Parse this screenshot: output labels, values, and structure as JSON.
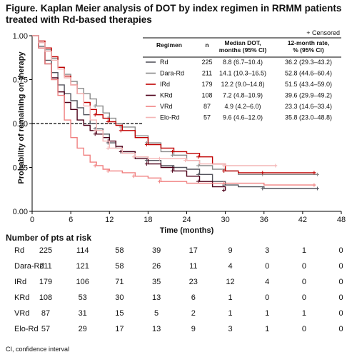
{
  "title": "Figure. Kaplan Meier analysis of DOT by index regimen in RRMM patients treated with Rd-based therapies",
  "chart_data": {
    "type": "line",
    "xlabel": "Time (months)",
    "ylabel": "Probability of remaining on therapy",
    "xlim": [
      0,
      48
    ],
    "ylim": [
      0,
      1.0
    ],
    "xticks": [
      "0",
      "6",
      "12",
      "18",
      "24",
      "30",
      "36",
      "42",
      "48"
    ],
    "yticks": [
      "0.00",
      "0.25",
      "0.50",
      "0.75",
      "1.00"
    ],
    "reference_line": {
      "y": 0.5,
      "style": "dashed"
    },
    "legend": {
      "censored_label": "+ Censored",
      "headers": [
        "Regimen",
        "n",
        "Median DOT, months (95% CI)",
        "12-month rate, % (95% CI)"
      ],
      "header_lines": [
        [
          "Regimen"
        ],
        [
          "n"
        ],
        [
          "Median DOT,",
          "months (95% CI)"
        ],
        [
          "12-month rate,",
          "% (95% CI)"
        ]
      ]
    },
    "series": [
      {
        "name": "Rd",
        "n": "225",
        "median": "8.8 (6.7–10.4)",
        "rate12": "36.2 (29.3–43.2)",
        "color": "#55555e",
        "x": [
          0,
          1,
          2,
          3,
          4,
          5,
          6,
          7,
          8,
          9,
          10,
          11,
          12,
          13,
          14,
          16,
          18,
          20,
          22,
          24,
          26,
          28,
          30,
          32,
          36,
          40,
          44.5
        ],
        "y": [
          1.0,
          0.94,
          0.86,
          0.79,
          0.72,
          0.67,
          0.63,
          0.59,
          0.55,
          0.5,
          0.47,
          0.44,
          0.39,
          0.36,
          0.34,
          0.31,
          0.29,
          0.26,
          0.25,
          0.24,
          0.21,
          0.17,
          0.15,
          0.14,
          0.13,
          0.13,
          0.13
        ]
      },
      {
        "name": "Dara-Rd",
        "n": "211",
        "median": "14.1 (10.3–16.5)",
        "rate12": "52.8 (44.6–60.4)",
        "color": "#8a8a8a",
        "x": [
          0,
          1,
          2,
          3,
          4,
          5,
          6,
          7,
          8,
          9,
          10,
          11,
          12,
          13,
          14,
          16,
          18,
          20,
          22,
          24,
          26,
          28,
          30,
          32,
          36,
          40,
          44.5
        ],
        "y": [
          1.0,
          0.96,
          0.92,
          0.87,
          0.82,
          0.78,
          0.74,
          0.7,
          0.67,
          0.64,
          0.6,
          0.56,
          0.53,
          0.5,
          0.48,
          0.43,
          0.39,
          0.34,
          0.32,
          0.29,
          0.26,
          0.24,
          0.23,
          0.21,
          0.21,
          0.21,
          0.21
        ]
      },
      {
        "name": "IRd",
        "n": "179",
        "median": "12.2 (9.0–14.8)",
        "rate12": "51.5 (43.4–59.0)",
        "color": "#c00000",
        "x": [
          0,
          1,
          2,
          3,
          4,
          5,
          6,
          7,
          8,
          9,
          10,
          11,
          12,
          13,
          14,
          16,
          18,
          20,
          22,
          24,
          26,
          28,
          30,
          32,
          36,
          40,
          44
        ],
        "y": [
          1.0,
          0.97,
          0.93,
          0.88,
          0.82,
          0.77,
          0.72,
          0.67,
          0.62,
          0.58,
          0.55,
          0.53,
          0.51,
          0.49,
          0.46,
          0.42,
          0.38,
          0.36,
          0.34,
          0.33,
          0.31,
          0.27,
          0.23,
          0.22,
          0.22,
          0.22,
          0.22
        ]
      },
      {
        "name": "KRd",
        "n": "108",
        "median": "7.2 (4.8–10.9)",
        "rate12": "39.6 (29.9–49.2)",
        "color": "#4d0019",
        "x": [
          0,
          1,
          2,
          3,
          4,
          5,
          6,
          7,
          8,
          9,
          10,
          11,
          12,
          13,
          14,
          16,
          18,
          20,
          22,
          24,
          26,
          28,
          30
        ],
        "y": [
          1.0,
          0.93,
          0.84,
          0.76,
          0.68,
          0.62,
          0.58,
          0.52,
          0.49,
          0.46,
          0.44,
          0.42,
          0.4,
          0.37,
          0.34,
          0.3,
          0.27,
          0.25,
          0.23,
          0.2,
          0.17,
          0.14,
          0.12
        ]
      },
      {
        "name": "VRd",
        "n": "87",
        "median": "4.9 (4.2–6.0)",
        "rate12": "23.3 (14.6–33.4)",
        "color": "#f08080",
        "x": [
          0,
          1,
          2,
          3,
          4,
          5,
          6,
          7,
          8,
          9,
          10,
          11,
          12,
          14,
          16,
          18,
          20,
          24,
          30,
          36,
          44
        ],
        "y": [
          1.0,
          0.93,
          0.84,
          0.75,
          0.66,
          0.52,
          0.42,
          0.36,
          0.32,
          0.28,
          0.26,
          0.24,
          0.23,
          0.22,
          0.2,
          0.19,
          0.17,
          0.16,
          0.16,
          0.15,
          0.15
        ]
      },
      {
        "name": "Elo-Rd",
        "n": "57",
        "median": "9.6 (4.6–12.0)",
        "rate12": "35.8 (23.0–48.8)",
        "color": "#f4b6b6",
        "x": [
          0,
          1,
          2,
          3,
          4,
          5,
          6,
          7,
          8,
          9,
          10,
          11,
          12,
          14,
          16,
          18,
          20,
          22,
          24,
          26,
          30,
          34,
          38
        ],
        "y": [
          1.0,
          0.96,
          0.91,
          0.86,
          0.81,
          0.76,
          0.72,
          0.67,
          0.6,
          0.52,
          0.46,
          0.4,
          0.36,
          0.33,
          0.31,
          0.3,
          0.3,
          0.3,
          0.29,
          0.27,
          0.26,
          0.26,
          0.26
        ]
      }
    ]
  },
  "risk_table": {
    "title": "Number of pts at risk",
    "rows": [
      {
        "label": "Rd",
        "values": [
          "225",
          "114",
          "58",
          "39",
          "17",
          "9",
          "3",
          "1",
          "0"
        ]
      },
      {
        "label": "Dara-Rd",
        "values": [
          "211",
          "121",
          "58",
          "26",
          "11",
          "4",
          "0",
          "0",
          "0"
        ]
      },
      {
        "label": "IRd",
        "values": [
          "179",
          "106",
          "71",
          "35",
          "23",
          "12",
          "4",
          "0",
          "0"
        ]
      },
      {
        "label": "KRd",
        "values": [
          "108",
          "53",
          "30",
          "13",
          "6",
          "1",
          "0",
          "0",
          "0"
        ]
      },
      {
        "label": "VRd",
        "values": [
          "87",
          "31",
          "15",
          "5",
          "2",
          "1",
          "1",
          "1",
          "0"
        ]
      },
      {
        "label": "Elo-Rd",
        "values": [
          "57",
          "29",
          "17",
          "13",
          "9",
          "3",
          "1",
          "0",
          "0"
        ]
      }
    ]
  },
  "footnote": "CI, confidence interval"
}
